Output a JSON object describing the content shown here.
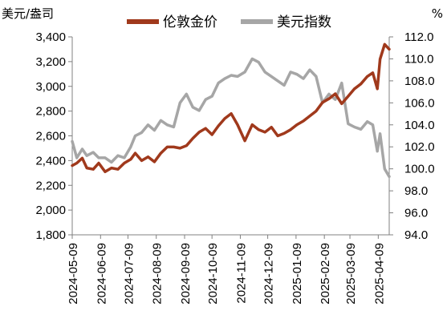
{
  "chart_data": {
    "type": "line",
    "title": "",
    "y_left_unit": "美元/盎司",
    "y_right_unit": "%",
    "y_left_lim": [
      1800,
      3400
    ],
    "y_left_ticks": [
      "1,800",
      "2,000",
      "2,200",
      "2,400",
      "2,600",
      "2,800",
      "3,000",
      "3,200",
      "3,400"
    ],
    "y_left_tick_values": [
      1800,
      2000,
      2200,
      2400,
      2600,
      2800,
      3000,
      3200,
      3400
    ],
    "y_right_lim": [
      94,
      112
    ],
    "y_right_ticks": [
      "94.0",
      "96.0",
      "98.0",
      "100.0",
      "102.0",
      "104.0",
      "106.0",
      "108.0",
      "110.0",
      "112.0"
    ],
    "y_right_tick_values": [
      94,
      96,
      98,
      100,
      102,
      104,
      106,
      108,
      110,
      112
    ],
    "x_ticks": [
      "2024-05-09",
      "2024-06-09",
      "2024-07-09",
      "2024-08-09",
      "2024-09-09",
      "2024-10-09",
      "2024-11-09",
      "2024-12-09",
      "2025-01-09",
      "2025-02-09",
      "2025-03-09",
      "2025-04-09"
    ],
    "x_start": "2024-05-09",
    "x_end": "2025-04-21",
    "legend_position": "top",
    "grid": false,
    "colors": {
      "gold": "#A0391C",
      "dxy": "#A6A6A6",
      "axis": "#808080"
    },
    "series": [
      {
        "name": "伦敦金价",
        "axis": "left",
        "dates": [
          "2024-05-09",
          "2024-05-14",
          "2024-05-20",
          "2024-05-25",
          "2024-06-01",
          "2024-06-07",
          "2024-06-14",
          "2024-06-21",
          "2024-06-28",
          "2024-07-05",
          "2024-07-12",
          "2024-07-17",
          "2024-07-24",
          "2024-07-31",
          "2024-08-07",
          "2024-08-14",
          "2024-08-21",
          "2024-08-28",
          "2024-09-04",
          "2024-09-11",
          "2024-09-18",
          "2024-09-25",
          "2024-10-02",
          "2024-10-09",
          "2024-10-16",
          "2024-10-23",
          "2024-10-30",
          "2024-11-06",
          "2024-11-14",
          "2024-11-22",
          "2024-11-29",
          "2024-12-06",
          "2024-12-13",
          "2024-12-20",
          "2024-12-27",
          "2025-01-03",
          "2025-01-10",
          "2025-01-17",
          "2025-01-24",
          "2025-01-31",
          "2025-02-07",
          "2025-02-14",
          "2025-02-21",
          "2025-02-28",
          "2025-03-07",
          "2025-03-14",
          "2025-03-21",
          "2025-03-28",
          "2025-04-03",
          "2025-04-08",
          "2025-04-11",
          "2025-04-16",
          "2025-04-21"
        ],
        "values": [
          2360,
          2380,
          2420,
          2340,
          2330,
          2380,
          2310,
          2340,
          2330,
          2380,
          2410,
          2460,
          2400,
          2430,
          2390,
          2460,
          2510,
          2510,
          2500,
          2520,
          2580,
          2630,
          2660,
          2610,
          2680,
          2740,
          2780,
          2690,
          2560,
          2690,
          2650,
          2630,
          2670,
          2600,
          2620,
          2650,
          2690,
          2720,
          2760,
          2800,
          2870,
          2900,
          2940,
          2860,
          2920,
          2980,
          3020,
          3080,
          3110,
          2980,
          3220,
          3340,
          3300
        ]
      },
      {
        "name": "美元指数",
        "axis": "right",
        "dates": [
          "2024-05-09",
          "2024-05-14",
          "2024-05-20",
          "2024-05-25",
          "2024-06-01",
          "2024-06-07",
          "2024-06-14",
          "2024-06-21",
          "2024-06-28",
          "2024-07-05",
          "2024-07-12",
          "2024-07-17",
          "2024-07-24",
          "2024-07-31",
          "2024-08-07",
          "2024-08-14",
          "2024-08-21",
          "2024-08-28",
          "2024-09-04",
          "2024-09-11",
          "2024-09-18",
          "2024-09-25",
          "2024-10-02",
          "2024-10-09",
          "2024-10-16",
          "2024-10-23",
          "2024-10-30",
          "2024-11-06",
          "2024-11-14",
          "2024-11-22",
          "2024-11-29",
          "2024-12-06",
          "2024-12-13",
          "2024-12-20",
          "2024-12-27",
          "2025-01-03",
          "2025-01-10",
          "2025-01-17",
          "2025-01-24",
          "2025-01-31",
          "2025-02-07",
          "2025-02-14",
          "2025-02-21",
          "2025-02-28",
          "2025-03-07",
          "2025-03-14",
          "2025-03-21",
          "2025-03-28",
          "2025-04-03",
          "2025-04-08",
          "2025-04-11",
          "2025-04-16",
          "2025-04-21"
        ],
        "values": [
          102.5,
          101.0,
          101.8,
          101.2,
          101.5,
          101.0,
          101.0,
          100.6,
          101.2,
          101.0,
          102.0,
          103.0,
          103.3,
          104.0,
          103.5,
          104.4,
          104.0,
          103.8,
          106.0,
          106.8,
          105.6,
          105.3,
          106.3,
          106.6,
          107.8,
          108.2,
          108.5,
          108.4,
          108.8,
          110.0,
          109.7,
          108.8,
          108.4,
          108.0,
          107.6,
          108.8,
          108.6,
          108.2,
          109.0,
          108.4,
          106.0,
          106.8,
          106.3,
          107.8,
          104.1,
          103.8,
          103.6,
          104.3,
          104.0,
          101.6,
          103.2,
          100.0,
          99.3
        ]
      }
    ]
  }
}
